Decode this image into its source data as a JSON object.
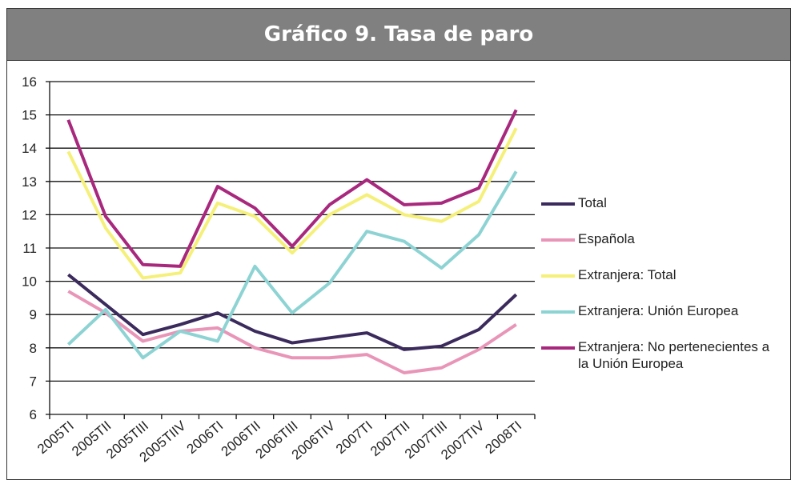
{
  "chart_data": {
    "type": "line",
    "title": "Gráfico 9. Tasa de paro",
    "categories": [
      "2005TI",
      "2005TII",
      "2005TIII",
      "2005TIIV",
      "2006TI",
      "2006TII",
      "2006TIII",
      "2006TIV",
      "2007TI",
      "2007TII",
      "2007TIII",
      "2007TIV",
      "2008TI"
    ],
    "series": [
      {
        "name": "Total",
        "color": "#3b2a5c",
        "values": [
          10.2,
          9.3,
          8.4,
          8.7,
          9.05,
          8.5,
          8.15,
          8.3,
          8.45,
          7.95,
          8.05,
          8.55,
          9.6
        ]
      },
      {
        "name": "Española",
        "color": "#e895b8",
        "values": [
          9.7,
          9.05,
          8.2,
          8.5,
          8.6,
          8.0,
          7.7,
          7.7,
          7.8,
          7.25,
          7.4,
          7.95,
          8.7
        ]
      },
      {
        "name": "Extranjera: Total",
        "color": "#f5f07a",
        "values": [
          13.9,
          11.6,
          10.1,
          10.25,
          12.35,
          11.95,
          10.85,
          12.0,
          12.6,
          12.0,
          11.8,
          12.4,
          14.6
        ]
      },
      {
        "name": "Extranjera: Unión Europea",
        "color": "#8ed3d3",
        "values": [
          8.1,
          9.15,
          7.7,
          8.5,
          8.2,
          10.45,
          9.05,
          9.95,
          11.5,
          11.2,
          10.4,
          11.4,
          13.3
        ]
      },
      {
        "name": "Extranjera: No pertenecientes a la Unión Europea",
        "color": "#a8287d",
        "values": [
          14.85,
          11.95,
          10.5,
          10.45,
          12.85,
          12.2,
          11.05,
          12.3,
          13.05,
          12.3,
          12.35,
          12.8,
          15.15
        ]
      }
    ],
    "ylim": [
      6,
      16
    ],
    "yticks": [
      6,
      7,
      8,
      9,
      10,
      11,
      12,
      13,
      14,
      15,
      16
    ],
    "grid": true
  }
}
